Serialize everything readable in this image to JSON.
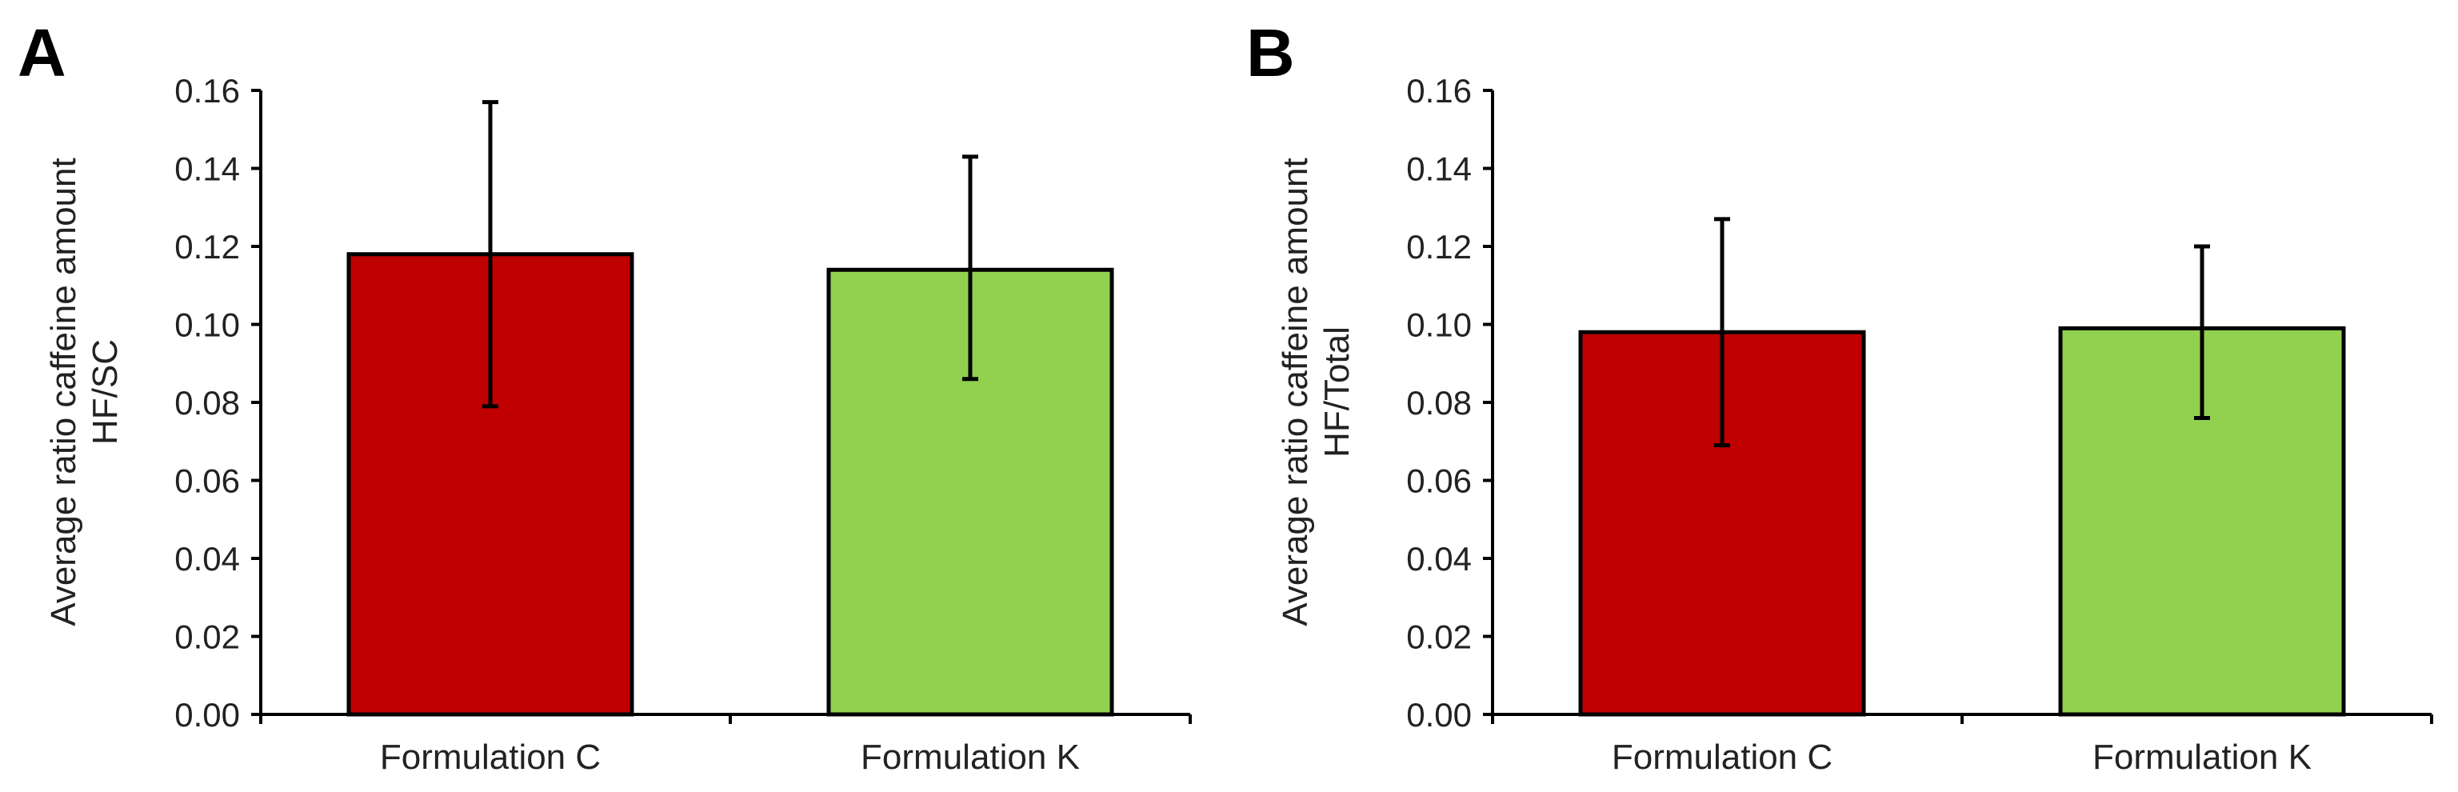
{
  "chart_data": [
    {
      "type": "bar",
      "panel_label": "A",
      "categories": [
        "Formulation C",
        "Formulation K"
      ],
      "values": [
        0.118,
        0.114
      ],
      "error_upper": [
        0.157,
        0.143
      ],
      "error_lower": [
        0.079,
        0.086
      ],
      "colors": [
        "#c00000",
        "#92d050"
      ],
      "ylabel_line1": "Average ratio caffeine amount",
      "ylabel_line2": "HF/SC",
      "ylim": [
        0,
        0.16
      ],
      "yticks": [
        "0.00",
        "0.02",
        "0.04",
        "0.06",
        "0.08",
        "0.10",
        "0.12",
        "0.14",
        "0.16"
      ],
      "grid": false,
      "legend": "none"
    },
    {
      "type": "bar",
      "panel_label": "B",
      "categories": [
        "Formulation C",
        "Formulation K"
      ],
      "values": [
        0.098,
        0.099
      ],
      "error_upper": [
        0.127,
        0.12
      ],
      "error_lower": [
        0.069,
        0.076
      ],
      "colors": [
        "#c00000",
        "#92d050"
      ],
      "ylabel_line1": "Average ratio caffeine amount",
      "ylabel_line2": "HF/Total",
      "ylim": [
        0,
        0.16
      ],
      "yticks": [
        "0.00",
        "0.02",
        "0.04",
        "0.06",
        "0.08",
        "0.10",
        "0.12",
        "0.14",
        "0.16"
      ],
      "grid": false,
      "legend": "none"
    }
  ]
}
